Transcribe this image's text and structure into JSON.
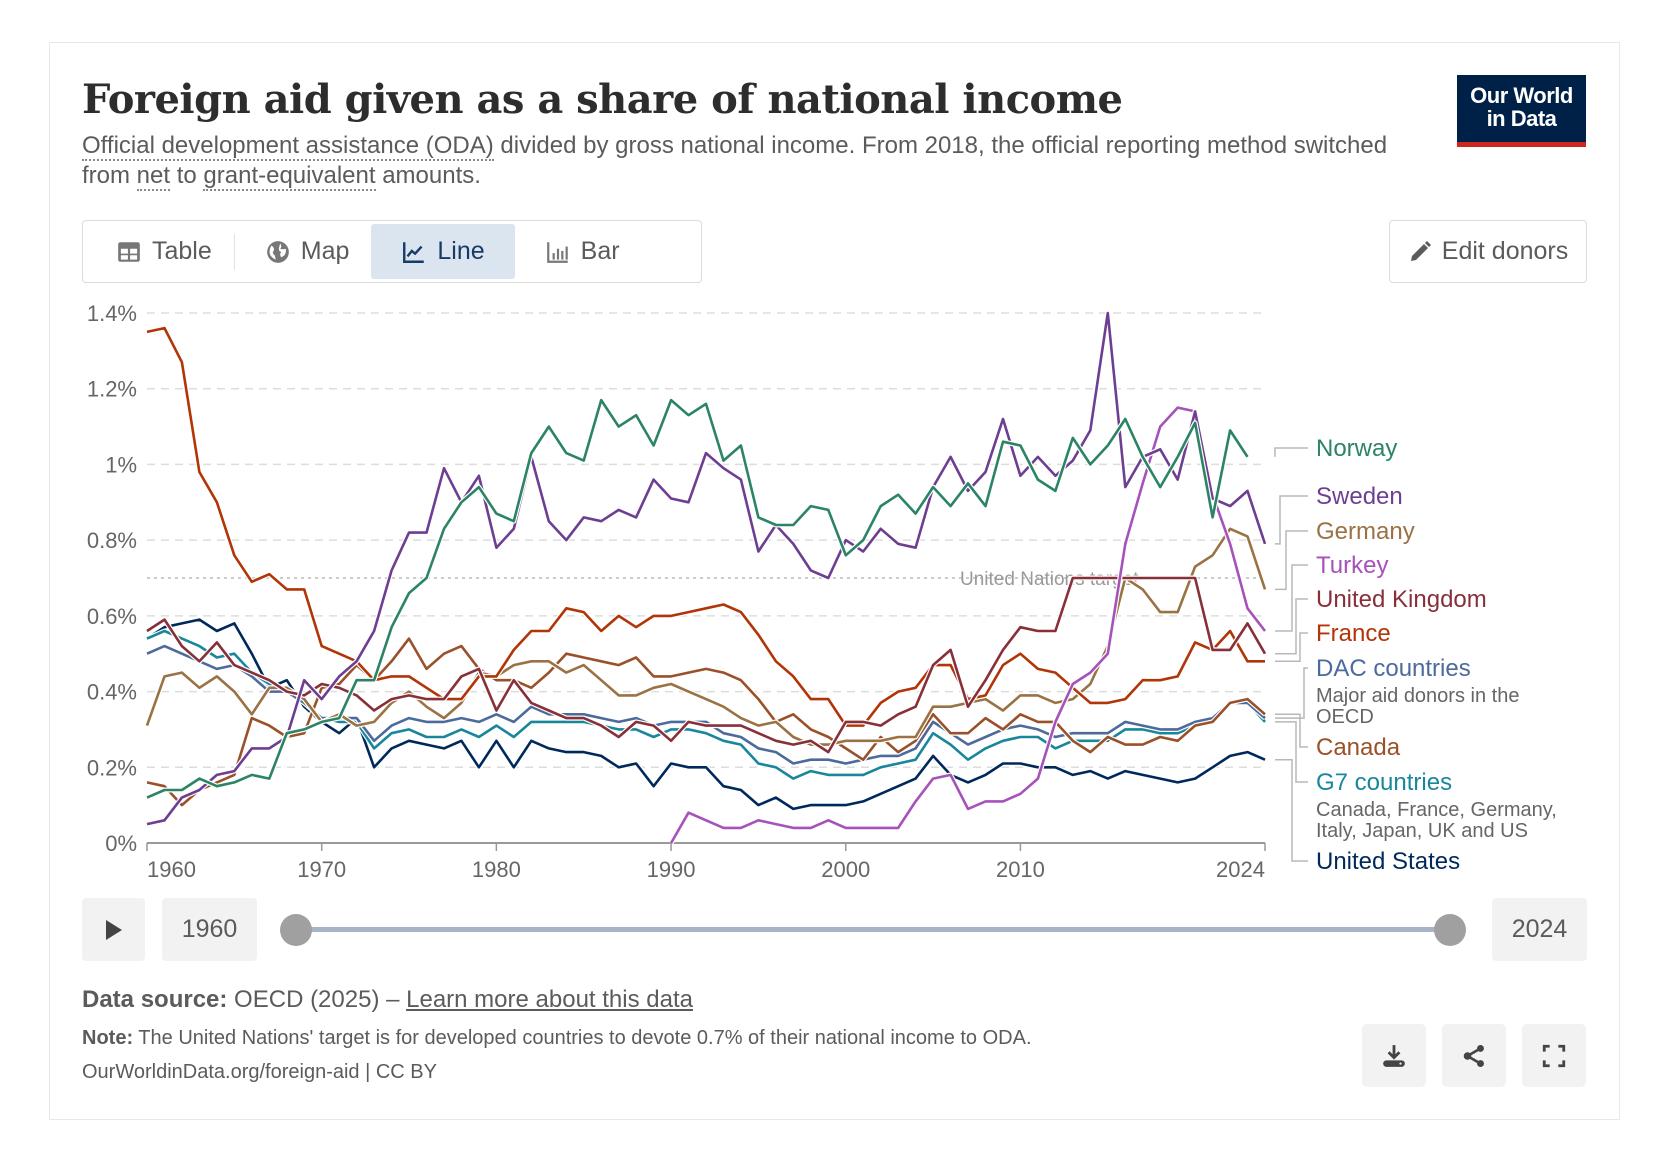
{
  "header": {
    "title": "Foreign aid given as a share of national income",
    "subtitle_parts": {
      "oda": "Official development assistance (ODA)",
      "mid": " divided by gross national income. From 2018, the official reporting method switched from ",
      "net": "net",
      "to": " to ",
      "ge": "grant-equivalent",
      "end": " amounts."
    },
    "logo_line1": "Our World",
    "logo_line2": "in Data"
  },
  "tabs": [
    {
      "label": "Table",
      "icon": "table-icon",
      "active": false
    },
    {
      "label": "Map",
      "icon": "globe-icon",
      "active": false
    },
    {
      "label": "Line",
      "icon": "line-chart-icon",
      "active": true
    },
    {
      "label": "Bar",
      "icon": "bar-chart-icon",
      "active": false
    }
  ],
  "edit_button": {
    "label": "Edit donors",
    "icon": "pencil-icon"
  },
  "timeline": {
    "start_label": "1960",
    "end_label": "2024",
    "start_value": 1960,
    "end_value": 2024,
    "play_icon": "play-icon"
  },
  "footer": {
    "source_label": "Data source:",
    "source_value": " OECD (2025) – ",
    "source_link": "Learn more about this data",
    "note_label": "Note:",
    "note_text": " The United Nations' target is for developed countries to devote 0.7% of their national income to ODA.",
    "credit": "OurWorldinData.org/foreign-aid | CC BY",
    "actions": [
      "download-icon",
      "share-icon",
      "fullscreen-icon"
    ]
  },
  "chart_data": {
    "type": "line",
    "title": "Foreign aid given as a share of national income",
    "xlabel": "",
    "ylabel": "",
    "xlim": [
      1960,
      2024
    ],
    "ylim": [
      0,
      1.4
    ],
    "x_ticks": [
      1960,
      1970,
      1980,
      1990,
      2000,
      2010,
      2024
    ],
    "y_ticks": [
      0,
      0.2,
      0.4,
      0.6,
      0.8,
      1,
      1.2,
      1.4
    ],
    "y_tick_labels": [
      "0%",
      "0.2%",
      "0.4%",
      "0.6%",
      "0.8%",
      "1%",
      "1.2%",
      "1.4%"
    ],
    "grid": true,
    "legend": "right",
    "reference_line": {
      "value": 0.7,
      "label": "United Nations target"
    },
    "series": [
      {
        "name": "Norway",
        "color": "#2c8465",
        "start": 1960,
        "values": [
          0.12,
          0.14,
          0.14,
          0.17,
          0.15,
          0.16,
          0.18,
          0.17,
          0.29,
          0.3,
          0.32,
          0.33,
          0.43,
          0.43,
          0.57,
          0.66,
          0.7,
          0.83,
          0.9,
          0.94,
          0.87,
          0.85,
          1.03,
          1.1,
          1.03,
          1.01,
          1.17,
          1.1,
          1.13,
          1.05,
          1.17,
          1.13,
          1.16,
          1.01,
          1.05,
          0.86,
          0.84,
          0.84,
          0.89,
          0.88,
          0.76,
          0.8,
          0.89,
          0.92,
          0.87,
          0.94,
          0.89,
          0.95,
          0.89,
          1.06,
          1.05,
          0.96,
          0.93,
          1.07,
          1.0,
          1.05,
          1.12,
          1.02,
          0.94,
          1.02,
          1.11,
          0.86,
          1.09,
          1.02
        ]
      },
      {
        "name": "Sweden",
        "color": "#6d3e91",
        "start": 1960,
        "values": [
          0.05,
          0.06,
          0.12,
          0.14,
          0.18,
          0.19,
          0.25,
          0.25,
          0.28,
          0.43,
          0.38,
          0.44,
          0.48,
          0.56,
          0.72,
          0.82,
          0.82,
          0.99,
          0.9,
          0.97,
          0.78,
          0.83,
          1.02,
          0.85,
          0.8,
          0.86,
          0.85,
          0.88,
          0.86,
          0.96,
          0.91,
          0.9,
          1.03,
          0.99,
          0.96,
          0.77,
          0.84,
          0.79,
          0.72,
          0.7,
          0.8,
          0.77,
          0.83,
          0.79,
          0.78,
          0.94,
          1.02,
          0.93,
          0.98,
          1.12,
          0.97,
          1.02,
          0.97,
          1.01,
          1.09,
          1.4,
          0.94,
          1.02,
          1.04,
          0.96,
          1.14,
          0.91,
          0.89,
          0.93,
          0.79
        ]
      },
      {
        "name": "Germany",
        "color": "#9a7244",
        "start": 1960,
        "values": [
          0.31,
          0.44,
          0.45,
          0.41,
          0.44,
          0.4,
          0.34,
          0.41,
          0.41,
          0.38,
          0.32,
          0.34,
          0.31,
          0.32,
          0.37,
          0.4,
          0.36,
          0.33,
          0.37,
          0.45,
          0.44,
          0.47,
          0.48,
          0.48,
          0.45,
          0.47,
          0.43,
          0.39,
          0.39,
          0.41,
          0.42,
          0.4,
          0.38,
          0.36,
          0.33,
          0.31,
          0.32,
          0.28,
          0.26,
          0.26,
          0.27,
          0.27,
          0.27,
          0.28,
          0.28,
          0.36,
          0.36,
          0.37,
          0.38,
          0.35,
          0.39,
          0.39,
          0.37,
          0.38,
          0.42,
          0.52,
          0.7,
          0.67,
          0.61,
          0.61,
          0.73,
          0.76,
          0.83,
          0.81,
          0.67
        ]
      },
      {
        "name": "Turkey",
        "color": "#a652ba",
        "start": 1990,
        "values": [
          0.0,
          0.08,
          0.06,
          0.04,
          0.04,
          0.06,
          0.05,
          0.04,
          0.04,
          0.06,
          0.04,
          0.04,
          0.04,
          0.04,
          0.11,
          0.17,
          0.18,
          0.09,
          0.11,
          0.11,
          0.13,
          0.17,
          0.32,
          0.42,
          0.45,
          0.5,
          0.79,
          0.95,
          1.1,
          1.15,
          1.14,
          0.92,
          0.79,
          0.62,
          0.56
        ]
      },
      {
        "name": "United Kingdom",
        "color": "#883039",
        "start": 1960,
        "values": [
          0.56,
          0.59,
          0.52,
          0.48,
          0.53,
          0.47,
          0.45,
          0.43,
          0.4,
          0.39,
          0.42,
          0.41,
          0.39,
          0.35,
          0.38,
          0.39,
          0.38,
          0.38,
          0.44,
          0.46,
          0.35,
          0.43,
          0.37,
          0.35,
          0.33,
          0.33,
          0.31,
          0.28,
          0.32,
          0.31,
          0.27,
          0.32,
          0.31,
          0.31,
          0.31,
          0.29,
          0.27,
          0.26,
          0.27,
          0.24,
          0.32,
          0.32,
          0.31,
          0.34,
          0.36,
          0.47,
          0.51,
          0.36,
          0.43,
          0.51,
          0.57,
          0.56,
          0.56,
          0.7,
          0.7,
          0.7,
          0.7,
          0.7,
          0.7,
          0.7,
          0.7,
          0.51,
          0.51,
          0.58,
          0.5
        ]
      },
      {
        "name": "France",
        "color": "#b13507",
        "start": 1960,
        "values": [
          1.35,
          1.36,
          1.27,
          0.98,
          0.9,
          0.76,
          0.69,
          0.71,
          0.67,
          0.67,
          0.52,
          0.5,
          0.48,
          0.43,
          0.44,
          0.44,
          0.41,
          0.38,
          0.38,
          0.44,
          0.44,
          0.51,
          0.56,
          0.56,
          0.62,
          0.61,
          0.56,
          0.6,
          0.57,
          0.6,
          0.6,
          0.61,
          0.62,
          0.63,
          0.61,
          0.55,
          0.48,
          0.44,
          0.38,
          0.38,
          0.31,
          0.31,
          0.37,
          0.4,
          0.41,
          0.47,
          0.47,
          0.38,
          0.39,
          0.47,
          0.5,
          0.46,
          0.45,
          0.41,
          0.37,
          0.37,
          0.38,
          0.43,
          0.43,
          0.44,
          0.53,
          0.51,
          0.56,
          0.48,
          0.48
        ]
      },
      {
        "name": "DAC countries",
        "color": "#4c6a9c",
        "start": 1960,
        "values": [
          0.5,
          0.52,
          0.5,
          0.48,
          0.46,
          0.47,
          0.44,
          0.4,
          0.4,
          0.37,
          0.33,
          0.33,
          0.33,
          0.27,
          0.31,
          0.33,
          0.32,
          0.32,
          0.33,
          0.32,
          0.34,
          0.32,
          0.36,
          0.34,
          0.34,
          0.34,
          0.33,
          0.32,
          0.33,
          0.31,
          0.32,
          0.32,
          0.32,
          0.29,
          0.28,
          0.25,
          0.24,
          0.21,
          0.22,
          0.22,
          0.21,
          0.22,
          0.23,
          0.23,
          0.25,
          0.32,
          0.29,
          0.26,
          0.28,
          0.3,
          0.31,
          0.3,
          0.28,
          0.29,
          0.29,
          0.29,
          0.32,
          0.31,
          0.3,
          0.3,
          0.32,
          0.33,
          0.37,
          0.37,
          0.33
        ]
      },
      {
        "name": "Canada",
        "color": "#a2559c00",
        "display_color": "#9a5129",
        "start": 1960,
        "values": [
          0.16,
          0.15,
          0.1,
          0.14,
          0.16,
          0.18,
          0.33,
          0.31,
          0.28,
          0.29,
          0.41,
          0.42,
          0.47,
          0.43,
          0.48,
          0.54,
          0.46,
          0.5,
          0.52,
          0.46,
          0.43,
          0.43,
          0.41,
          0.45,
          0.5,
          0.49,
          0.48,
          0.47,
          0.49,
          0.44,
          0.44,
          0.45,
          0.46,
          0.45,
          0.43,
          0.38,
          0.32,
          0.34,
          0.3,
          0.28,
          0.25,
          0.22,
          0.28,
          0.24,
          0.27,
          0.34,
          0.29,
          0.29,
          0.33,
          0.3,
          0.34,
          0.32,
          0.32,
          0.27,
          0.24,
          0.28,
          0.26,
          0.26,
          0.28,
          0.27,
          0.31,
          0.32,
          0.37,
          0.38,
          0.34
        ]
      },
      {
        "name": "G7 countries",
        "color": "#18879b",
        "start": 1960,
        "values": [
          0.54,
          0.56,
          0.54,
          0.52,
          0.49,
          0.5,
          0.45,
          0.42,
          0.4,
          0.37,
          0.33,
          0.32,
          0.32,
          0.25,
          0.29,
          0.3,
          0.28,
          0.28,
          0.3,
          0.28,
          0.31,
          0.28,
          0.32,
          0.32,
          0.32,
          0.32,
          0.31,
          0.3,
          0.3,
          0.28,
          0.3,
          0.3,
          0.29,
          0.27,
          0.26,
          0.21,
          0.2,
          0.17,
          0.19,
          0.18,
          0.18,
          0.18,
          0.2,
          0.21,
          0.22,
          0.29,
          0.26,
          0.22,
          0.25,
          0.27,
          0.28,
          0.28,
          0.25,
          0.27,
          0.27,
          0.27,
          0.3,
          0.3,
          0.29,
          0.29,
          0.31,
          0.32,
          0.37,
          0.37,
          0.32
        ]
      },
      {
        "name": "United States",
        "color": "#00295b",
        "start": 1960,
        "values": [
          0.54,
          0.57,
          0.58,
          0.59,
          0.56,
          0.58,
          0.5,
          0.41,
          0.43,
          0.36,
          0.32,
          0.29,
          0.33,
          0.2,
          0.25,
          0.27,
          0.26,
          0.25,
          0.27,
          0.2,
          0.27,
          0.2,
          0.27,
          0.25,
          0.24,
          0.24,
          0.23,
          0.2,
          0.21,
          0.15,
          0.21,
          0.2,
          0.2,
          0.15,
          0.14,
          0.1,
          0.12,
          0.09,
          0.1,
          0.1,
          0.1,
          0.11,
          0.13,
          0.15,
          0.17,
          0.23,
          0.18,
          0.16,
          0.18,
          0.21,
          0.21,
          0.2,
          0.2,
          0.18,
          0.19,
          0.17,
          0.19,
          0.18,
          0.17,
          0.16,
          0.17,
          0.2,
          0.23,
          0.24,
          0.22
        ]
      }
    ],
    "legend_entries": [
      {
        "name": "Norway",
        "color": "#2c8465"
      },
      {
        "name": "Sweden",
        "color": "#6d3e91"
      },
      {
        "name": "Germany",
        "color": "#9a7244"
      },
      {
        "name": "Turkey",
        "color": "#a652ba"
      },
      {
        "name": "United Kingdom",
        "color": "#883039"
      },
      {
        "name": "France",
        "color": "#b13507"
      },
      {
        "name": "DAC countries",
        "color": "#4c6a9c",
        "description": "Major aid donors in the OECD"
      },
      {
        "name": "Canada",
        "color": "#9a5129"
      },
      {
        "name": "G7 countries",
        "color": "#18879b",
        "description": "Canada, France, Germany, Italy, Japan, UK and US"
      },
      {
        "name": "United States",
        "color": "#00295b"
      }
    ]
  }
}
